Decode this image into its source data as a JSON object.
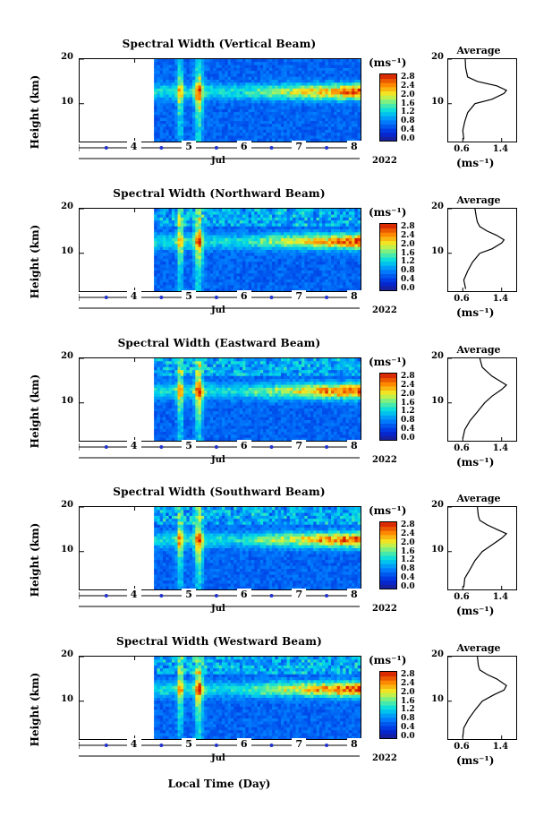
{
  "units": {
    "height_axis": "Height (km)",
    "colorbar": "(ms⁻¹)",
    "average_title": "Average",
    "average_unit": "(ms⁻¹)",
    "x_axis_title": "Local Time (Day)",
    "month": "Jul",
    "year": "2022"
  },
  "chart_data": [
    {
      "type": "heatmap",
      "title": "Spectral Width (Vertical Beam)",
      "ylabel": "Height (km)",
      "xlabel": "Local Time (Day)",
      "x_ticks": [
        "4",
        "5",
        "6",
        "7",
        "8"
      ],
      "y_ticks": [
        "20",
        "10"
      ],
      "x_range": [
        3.0,
        8.1
      ],
      "y_range": [
        1.5,
        20.0
      ],
      "colorbar": {
        "label": "(ms⁻¹)",
        "ticks": [
          "2.8",
          "2.4",
          "2.0",
          "1.6",
          "1.2",
          "0.8",
          "0.4",
          "0.0"
        ],
        "range": [
          0.0,
          3.0
        ]
      },
      "data_start_day": 4.35,
      "data_end_day": 8.1,
      "average_profile": {
        "title": "Average",
        "xlabel": "(ms⁻¹)",
        "x_ticks": [
          "0.6",
          "1.4"
        ],
        "y_ticks": [
          "20",
          "10"
        ],
        "points": [
          [
            0.62,
            2
          ],
          [
            0.6,
            4
          ],
          [
            0.64,
            6
          ],
          [
            0.7,
            8
          ],
          [
            0.85,
            10
          ],
          [
            1.2,
            11
          ],
          [
            1.45,
            12.3
          ],
          [
            1.5,
            13
          ],
          [
            1.3,
            14
          ],
          [
            0.9,
            15
          ],
          [
            0.7,
            16
          ],
          [
            0.66,
            18
          ],
          [
            0.65,
            20
          ]
        ]
      }
    },
    {
      "type": "heatmap",
      "title": "Spectral Width (Northward Beam)",
      "ylabel": "Height (km)",
      "xlabel": "Local Time (Day)",
      "x_ticks": [
        "4",
        "5",
        "6",
        "7",
        "8"
      ],
      "y_ticks": [
        "20",
        "10"
      ],
      "x_range": [
        3.0,
        8.1
      ],
      "y_range": [
        1.5,
        20.0
      ],
      "colorbar": {
        "label": "(ms⁻¹)",
        "ticks": [
          "2.8",
          "2.4",
          "2.0",
          "1.6",
          "1.2",
          "0.8",
          "0.4",
          "0.0"
        ],
        "range": [
          0.0,
          3.0
        ]
      },
      "data_start_day": 4.35,
      "data_end_day": 8.1,
      "average_profile": {
        "title": "Average",
        "xlabel": "(ms⁻¹)",
        "x_ticks": [
          "0.6",
          "1.4"
        ],
        "y_ticks": [
          "20",
          "10"
        ],
        "points": [
          [
            0.66,
            2
          ],
          [
            0.62,
            4
          ],
          [
            0.7,
            6
          ],
          [
            0.8,
            8
          ],
          [
            0.95,
            10
          ],
          [
            1.2,
            11
          ],
          [
            1.4,
            12.3
          ],
          [
            1.45,
            13
          ],
          [
            1.3,
            14
          ],
          [
            1.1,
            15
          ],
          [
            0.95,
            16
          ],
          [
            0.9,
            17
          ],
          [
            0.88,
            18
          ],
          [
            0.85,
            20
          ]
        ]
      }
    },
    {
      "type": "heatmap",
      "title": "Spectral Width (Eastward Beam)",
      "ylabel": "Height (km)",
      "xlabel": "Local Time (Day)",
      "x_ticks": [
        "4",
        "5",
        "6",
        "7",
        "8"
      ],
      "y_ticks": [
        "20",
        "10"
      ],
      "x_range": [
        3.0,
        8.1
      ],
      "y_range": [
        1.5,
        20.0
      ],
      "colorbar": {
        "label": "(ms⁻¹)",
        "ticks": [
          "2.8",
          "2.4",
          "2.0",
          "1.6",
          "1.2",
          "0.8",
          "0.4",
          "0.0"
        ],
        "range": [
          0.0,
          3.0
        ]
      },
      "data_start_day": 4.35,
      "data_end_day": 8.1,
      "average_profile": {
        "title": "Average",
        "xlabel": "(ms⁻¹)",
        "x_ticks": [
          "0.6",
          "1.4"
        ],
        "y_ticks": [
          "20",
          "10"
        ],
        "points": [
          [
            0.6,
            2
          ],
          [
            0.64,
            4
          ],
          [
            0.75,
            6
          ],
          [
            0.9,
            8
          ],
          [
            1.05,
            10
          ],
          [
            1.2,
            11.5
          ],
          [
            1.4,
            13
          ],
          [
            1.5,
            14
          ],
          [
            1.35,
            15
          ],
          [
            1.2,
            16
          ],
          [
            1.1,
            17
          ],
          [
            1.0,
            18
          ],
          [
            0.95,
            20
          ]
        ]
      }
    },
    {
      "type": "heatmap",
      "title": "Spectral Width (Southward Beam)",
      "ylabel": "Height (km)",
      "xlabel": "Local Time (Day)",
      "x_ticks": [
        "4",
        "5",
        "6",
        "7",
        "8"
      ],
      "y_ticks": [
        "20",
        "10"
      ],
      "x_range": [
        3.0,
        8.1
      ],
      "y_range": [
        1.5,
        20.0
      ],
      "colorbar": {
        "label": "(ms⁻¹)",
        "ticks": [
          "2.8",
          "2.4",
          "2.0",
          "1.6",
          "1.2",
          "0.8",
          "0.4",
          "0.0"
        ],
        "range": [
          0.0,
          3.0
        ]
      },
      "data_start_day": 4.35,
      "data_end_day": 8.1,
      "average_profile": {
        "title": "Average",
        "xlabel": "(ms⁻¹)",
        "x_ticks": [
          "0.6",
          "1.4"
        ],
        "y_ticks": [
          "20",
          "10"
        ],
        "points": [
          [
            0.62,
            2
          ],
          [
            0.64,
            4
          ],
          [
            0.75,
            6
          ],
          [
            0.85,
            8
          ],
          [
            1.0,
            10
          ],
          [
            1.2,
            11.5
          ],
          [
            1.4,
            13
          ],
          [
            1.5,
            14
          ],
          [
            1.3,
            15
          ],
          [
            1.1,
            16
          ],
          [
            0.95,
            17
          ],
          [
            0.92,
            18
          ],
          [
            0.9,
            20
          ]
        ]
      }
    },
    {
      "type": "heatmap",
      "title": "Spectral Width (Westward Beam)",
      "ylabel": "Height (km)",
      "xlabel": "Local Time (Day)",
      "x_ticks": [
        "4",
        "5",
        "6",
        "7",
        "8"
      ],
      "y_ticks": [
        "20",
        "10"
      ],
      "x_range": [
        3.0,
        8.1
      ],
      "y_range": [
        1.5,
        20.0
      ],
      "colorbar": {
        "label": "(ms⁻¹)",
        "ticks": [
          "2.8",
          "2.4",
          "2.0",
          "1.6",
          "1.2",
          "0.8",
          "0.4",
          "0.0"
        ],
        "range": [
          0.0,
          3.0
        ]
      },
      "data_start_day": 4.35,
      "data_end_day": 8.1,
      "average_profile": {
        "title": "Average",
        "xlabel": "(ms⁻¹)",
        "x_ticks": [
          "0.6",
          "1.4"
        ],
        "y_ticks": [
          "20",
          "10"
        ],
        "points": [
          [
            0.6,
            2
          ],
          [
            0.62,
            4
          ],
          [
            0.72,
            6
          ],
          [
            0.85,
            8
          ],
          [
            1.0,
            10
          ],
          [
            1.25,
            11.5
          ],
          [
            1.45,
            12.5
          ],
          [
            1.5,
            13.5
          ],
          [
            1.3,
            15
          ],
          [
            1.1,
            16
          ],
          [
            0.95,
            17
          ],
          [
            0.92,
            18
          ],
          [
            0.9,
            20
          ]
        ]
      }
    }
  ]
}
